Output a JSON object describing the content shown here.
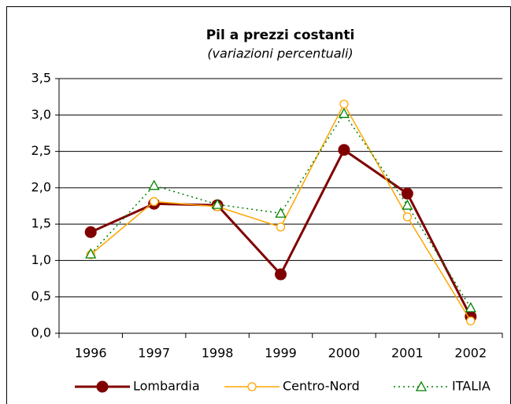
{
  "chart_data": {
    "type": "line",
    "title": "Pil a prezzi costanti",
    "subtitle": "(variazioni percentuali)",
    "categories": [
      "1996",
      "1997",
      "1998",
      "1999",
      "2000",
      "2001",
      "2002"
    ],
    "series": [
      {
        "name": "Lombardia",
        "color": "#800000",
        "marker": "circle",
        "dash": "solid",
        "values": [
          1.39,
          1.78,
          1.76,
          0.81,
          2.52,
          1.92,
          0.23
        ]
      },
      {
        "name": "Centro-Nord",
        "color": "#ffa500",
        "marker": "circle-open",
        "dash": "solid",
        "values": [
          1.08,
          1.81,
          1.74,
          1.46,
          3.15,
          1.6,
          0.17
        ]
      },
      {
        "name": "ITALIA",
        "color": "#008000",
        "marker": "triangle-open",
        "dash": "dotted",
        "values": [
          1.09,
          2.03,
          1.77,
          1.65,
          3.02,
          1.76,
          0.35
        ]
      }
    ],
    "ylim": [
      0,
      3.5
    ],
    "yticks": [
      {
        "value": 0,
        "label": "0,0"
      },
      {
        "value": 0.5,
        "label": "0,5"
      },
      {
        "value": 1,
        "label": "1,0"
      },
      {
        "value": 1.5,
        "label": "1,5"
      },
      {
        "value": 2,
        "label": "2,0"
      },
      {
        "value": 2.5,
        "label": "2,5"
      },
      {
        "value": 3,
        "label": "3,0"
      },
      {
        "value": 3.5,
        "label": "3,5"
      }
    ],
    "grid": true,
    "legend": "bottom"
  }
}
